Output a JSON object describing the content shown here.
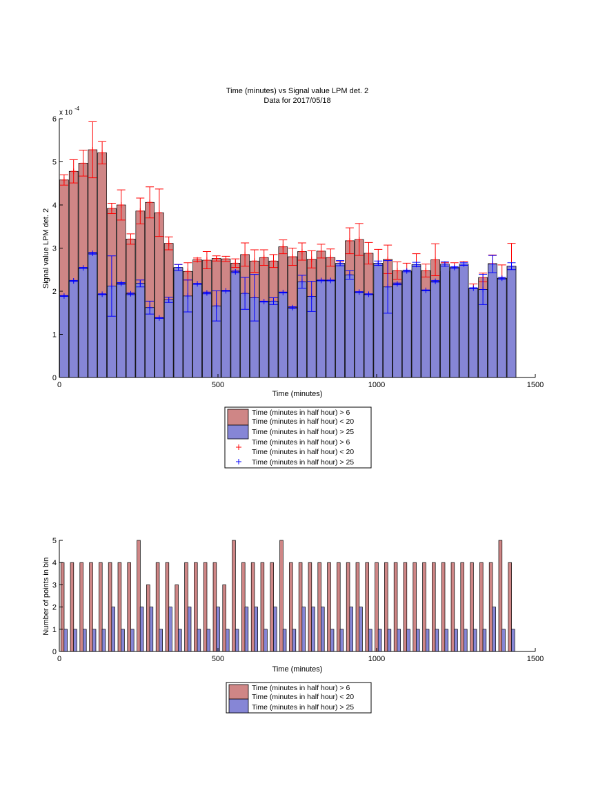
{
  "colors": {
    "red_bar": "#cf8686",
    "blue_bar": "#8686d6",
    "red_err": "#ff0000",
    "blue_err": "#0000ff",
    "axis": "#000000"
  },
  "chart_data": [
    {
      "type": "bar",
      "title": "Time (minutes) vs Signal value LPM det. 2",
      "subtitle": "Data for 2017/05/18",
      "xlabel": "Time (minutes)",
      "ylabel": "Signal value LPM det. 2",
      "exponent_label": "x 10",
      "exponent_power": "-4",
      "xlim": [
        0,
        1500
      ],
      "ylim": [
        0,
        6
      ],
      "xticks": [
        "0",
        "500",
        "1000",
        "1500"
      ],
      "yticks": [
        "0",
        "1",
        "2",
        "3",
        "4",
        "5",
        "6"
      ],
      "x": [
        15,
        45,
        75,
        105,
        135,
        165,
        195,
        225,
        255,
        285,
        315,
        345,
        375,
        405,
        435,
        465,
        495,
        525,
        555,
        585,
        615,
        645,
        675,
        705,
        735,
        765,
        795,
        825,
        855,
        885,
        915,
        945,
        975,
        1005,
        1035,
        1065,
        1095,
        1125,
        1155,
        1185,
        1215,
        1245,
        1275,
        1305,
        1335,
        1365,
        1395,
        1425
      ],
      "series": [
        {
          "name": "Time (minutes in half hour) > 6\nTime (minutes in half hour) < 20",
          "values": [
            4.58,
            4.78,
            4.97,
            5.28,
            5.21,
            3.92,
            4.0,
            3.21,
            3.86,
            4.06,
            3.82,
            3.11,
            2.54,
            2.46,
            2.73,
            2.72,
            2.76,
            2.75,
            2.65,
            2.85,
            2.7,
            2.78,
            2.7,
            3.03,
            2.8,
            2.92,
            2.74,
            2.93,
            2.78,
            2.6,
            3.17,
            3.2,
            2.88,
            2.62,
            2.74,
            2.48,
            2.45,
            2.5,
            2.48,
            2.73,
            2.46,
            2.5,
            2.57,
            2.05,
            2.32,
            2.64,
            2.3,
            2.58
          ],
          "errors": [
            0.12,
            0.27,
            0.3,
            0.65,
            0.26,
            0.12,
            0.35,
            0.12,
            0.3,
            0.36,
            0.55,
            0.15,
            0.08,
            0.2,
            0.04,
            0.2,
            0.06,
            0.06,
            0.1,
            0.27,
            0.26,
            0.18,
            0.15,
            0.16,
            0.2,
            0.2,
            0.2,
            0.16,
            0.2,
            0.08,
            0.3,
            0.37,
            0.25,
            0.35,
            0.33,
            0.2,
            0.2,
            0.37,
            0.15,
            0.37,
            0.2,
            0.16,
            0.12,
            0.12,
            0.1,
            0.2,
            0.31,
            0.53
          ]
        },
        {
          "name": "Time (minutes in half hour) > 25",
          "values": [
            1.89,
            2.24,
            2.54,
            2.88,
            1.93,
            2.12,
            2.18,
            1.94,
            2.18,
            1.62,
            1.38,
            1.8,
            2.55,
            1.89,
            2.17,
            1.96,
            1.66,
            2.01,
            2.45,
            1.95,
            1.85,
            1.76,
            1.77,
            1.97,
            1.62,
            2.22,
            1.88,
            2.25,
            2.25,
            2.65,
            2.38,
            1.98,
            1.93,
            2.65,
            2.1,
            2.17,
            2.47,
            2.62,
            2.02,
            2.23,
            2.63,
            2.55,
            2.63,
            2.07,
            2.04,
            2.63,
            2.3,
            2.58
          ],
          "errors": [
            0.01,
            0.01,
            0.01,
            0.02,
            0.01,
            0.7,
            0.02,
            0.02,
            0.08,
            0.15,
            0.01,
            0.06,
            0.07,
            0.37,
            0.01,
            0.02,
            0.35,
            0.01,
            0.02,
            0.37,
            0.54,
            0.01,
            0.08,
            0.01,
            0.02,
            0.15,
            0.35,
            0.01,
            0.01,
            0.06,
            0.1,
            0.01,
            0.01,
            0.05,
            0.61,
            0.02,
            0.02,
            0.05,
            0.01,
            0.02,
            0.05,
            0.02,
            0.03,
            0.01,
            0.35,
            0.2,
            0.02,
            0.08
          ]
        }
      ],
      "legend": {
        "placement": "below",
        "entries": [
          {
            "marker": "bar-red",
            "lines": [
              "Time (minutes in half hour) > 6",
              "Time (minutes in half hour) < 20"
            ]
          },
          {
            "marker": "bar-blue",
            "lines": [
              "Time (minutes in half hour) > 25"
            ]
          },
          {
            "marker": "plus-red",
            "lines": [
              "Time (minutes in half hour) > 6",
              "Time (minutes in half hour) < 20"
            ]
          },
          {
            "marker": "plus-blue",
            "lines": [
              "Time (minutes in half hour) > 25"
            ]
          }
        ]
      }
    },
    {
      "type": "bar",
      "xlabel": "Time (minutes)",
      "ylabel": "Number of points in bin",
      "xlim": [
        0,
        1500
      ],
      "ylim": [
        0,
        5
      ],
      "xticks": [
        "0",
        "500",
        "1000",
        "1500"
      ],
      "yticks": [
        "0",
        "1",
        "2",
        "3",
        "4",
        "5"
      ],
      "x": [
        15,
        45,
        75,
        105,
        135,
        165,
        195,
        225,
        255,
        285,
        315,
        345,
        375,
        405,
        435,
        465,
        495,
        525,
        555,
        585,
        615,
        645,
        675,
        705,
        735,
        765,
        795,
        825,
        855,
        885,
        915,
        945,
        975,
        1005,
        1035,
        1065,
        1095,
        1125,
        1155,
        1185,
        1215,
        1245,
        1275,
        1305,
        1335,
        1365,
        1395,
        1425
      ],
      "series": [
        {
          "name": "Time (minutes in half hour) > 6\nTime (minutes in half hour) < 20",
          "values": [
            4,
            4,
            4,
            4,
            4,
            4,
            4,
            4,
            5,
            3,
            4,
            4,
            3,
            4,
            4,
            4,
            4,
            3,
            5,
            4,
            4,
            4,
            4,
            5,
            4,
            4,
            4,
            4,
            4,
            4,
            4,
            4,
            4,
            4,
            4,
            4,
            4,
            4,
            4,
            4,
            4,
            4,
            4,
            4,
            4,
            4,
            5,
            4
          ]
        },
        {
          "name": "Time (minutes in half hour) > 25",
          "values": [
            1,
            1,
            1,
            1,
            1,
            2,
            1,
            1,
            2,
            2,
            1,
            2,
            1,
            2,
            1,
            1,
            2,
            1,
            1,
            2,
            2,
            1,
            2,
            1,
            1,
            2,
            2,
            2,
            1,
            1,
            2,
            2,
            1,
            1,
            1,
            1,
            1,
            1,
            1,
            1,
            1,
            1,
            1,
            1,
            1,
            2,
            1,
            1
          ]
        }
      ],
      "legend": {
        "placement": "below",
        "entries": [
          {
            "marker": "bar-red",
            "lines": [
              "Time (minutes in half hour) > 6",
              "Time (minutes in half hour) < 20"
            ]
          },
          {
            "marker": "bar-blue",
            "lines": [
              "Time (minutes in half hour) > 25"
            ]
          }
        ]
      }
    }
  ]
}
